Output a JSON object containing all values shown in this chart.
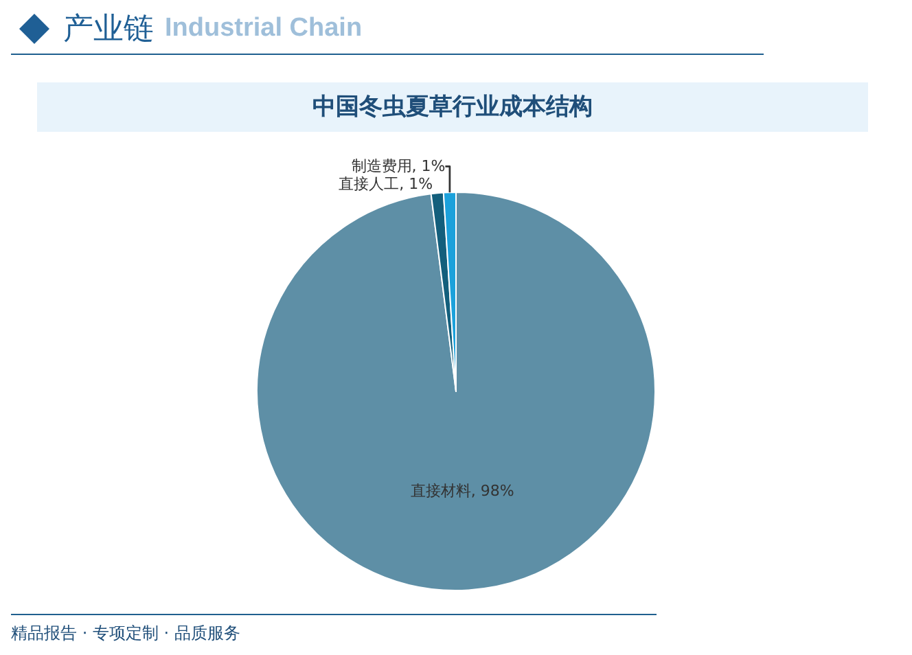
{
  "chart_data": {
    "type": "pie",
    "title": "中国冬虫夏草行业成本结构",
    "categories": [
      "直接材料",
      "直接人工",
      "制造费用"
    ],
    "values": [
      98,
      1,
      1
    ],
    "colors": [
      "#5e8fa6",
      "#135f7c",
      "#1ba1db"
    ],
    "value_labels": [
      "98%",
      "1%",
      "1%"
    ],
    "annotations": [
      "产业链",
      "Industrial Chain",
      "精品报告 · 专项定制 · 品质服务"
    ]
  }
}
